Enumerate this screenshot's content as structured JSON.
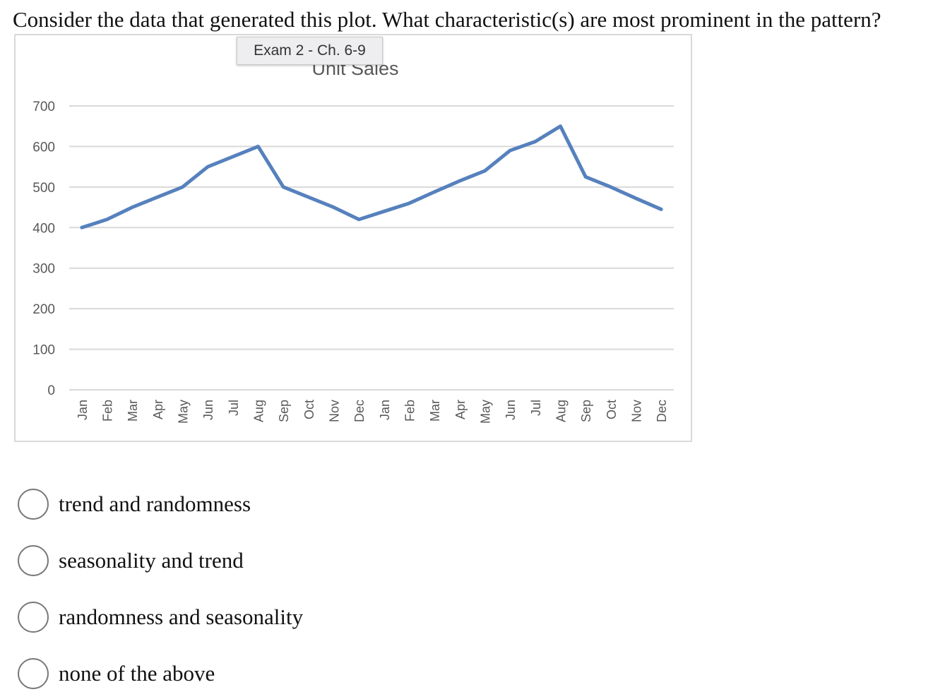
{
  "question": "Consider the data that generated this plot.  What characteristic(s) are most prominent in the pattern?",
  "tooltip": "Exam 2 - Ch. 6-9",
  "chart_data": {
    "type": "line",
    "title": "Unit Sales",
    "categories": [
      "Jan",
      "Feb",
      "Mar",
      "Apr",
      "May",
      "Jun",
      "Jul",
      "Aug",
      "Sep",
      "Oct",
      "Nov",
      "Dec",
      "Jan",
      "Feb",
      "Mar",
      "Apr",
      "May",
      "Jun",
      "Jul",
      "Aug",
      "Sep",
      "Oct",
      "Nov",
      "Dec"
    ],
    "values": [
      400,
      420,
      450,
      475,
      500,
      550,
      575,
      600,
      500,
      475,
      450,
      420,
      440,
      460,
      488,
      515,
      540,
      590,
      612,
      650,
      525,
      500,
      472,
      445
    ],
    "ylim": [
      0,
      700
    ],
    "yticks": [
      0,
      100,
      200,
      300,
      400,
      500,
      600,
      700
    ],
    "grid": true,
    "line_color": "#5681bd"
  },
  "options": [
    "trend and randomness",
    "seasonality and trend",
    "randomness and seasonality",
    "none of the above"
  ]
}
